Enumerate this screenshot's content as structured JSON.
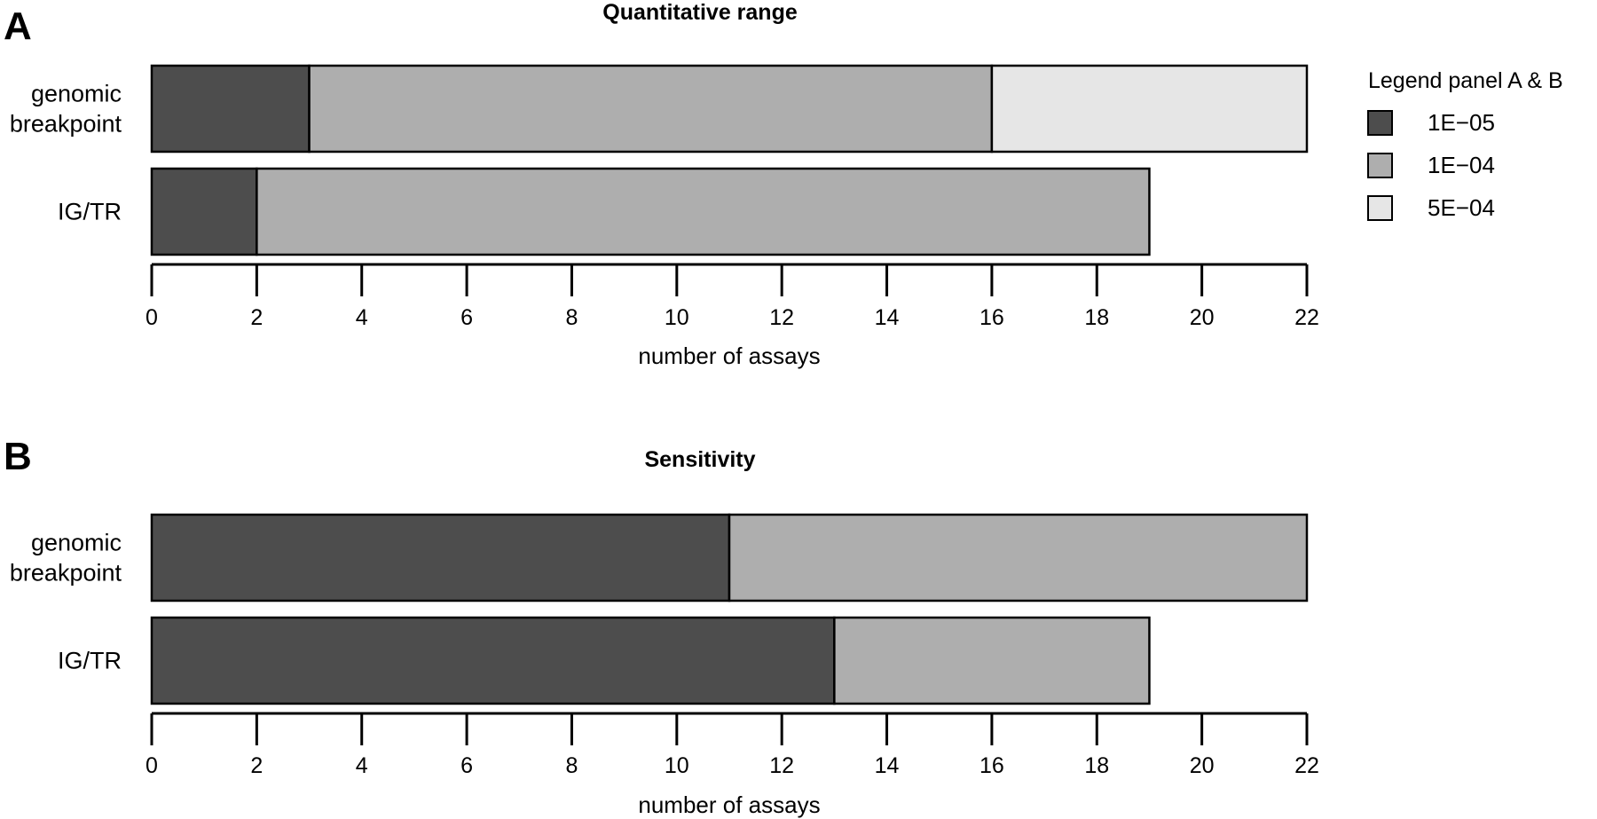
{
  "colors": {
    "1E−05": "#4d4d4d",
    "1E−04": "#aeaeae",
    "5E−04": "#e6e6e6",
    "outline": "#000000"
  },
  "legend": {
    "title": "Legend panel A & B",
    "items": [
      "1E−05",
      "1E−04",
      "5E−04"
    ],
    "placement": "right"
  },
  "chart_data": [
    {
      "type": "bar",
      "orientation": "horizontal",
      "stacked": true,
      "panel": "A",
      "title": "Quantitative range",
      "xlabel": "number of assays",
      "ylabel": "",
      "xlim": [
        0,
        22
      ],
      "xticks": [
        0,
        2,
        4,
        6,
        8,
        10,
        12,
        14,
        16,
        18,
        20,
        22
      ],
      "categories": [
        {
          "lines": [
            "genomic",
            "breakpoint"
          ]
        },
        {
          "lines": [
            "IG/TR"
          ]
        }
      ],
      "series": [
        {
          "name": "1E−05",
          "values": [
            3,
            2
          ]
        },
        {
          "name": "1E−04",
          "values": [
            13,
            17
          ]
        },
        {
          "name": "5E−04",
          "values": [
            6,
            0
          ]
        }
      ]
    },
    {
      "type": "bar",
      "orientation": "horizontal",
      "stacked": true,
      "panel": "B",
      "title": "Sensitivity",
      "xlabel": "number of assays",
      "ylabel": "",
      "xlim": [
        0,
        22
      ],
      "xticks": [
        0,
        2,
        4,
        6,
        8,
        10,
        12,
        14,
        16,
        18,
        20,
        22
      ],
      "categories": [
        {
          "lines": [
            "genomic",
            "breakpoint"
          ]
        },
        {
          "lines": [
            "IG/TR"
          ]
        }
      ],
      "series": [
        {
          "name": "1E−05",
          "values": [
            11,
            13
          ]
        },
        {
          "name": "1E−04",
          "values": [
            11,
            6
          ]
        },
        {
          "name": "5E−04",
          "values": [
            0,
            0
          ]
        }
      ]
    }
  ]
}
